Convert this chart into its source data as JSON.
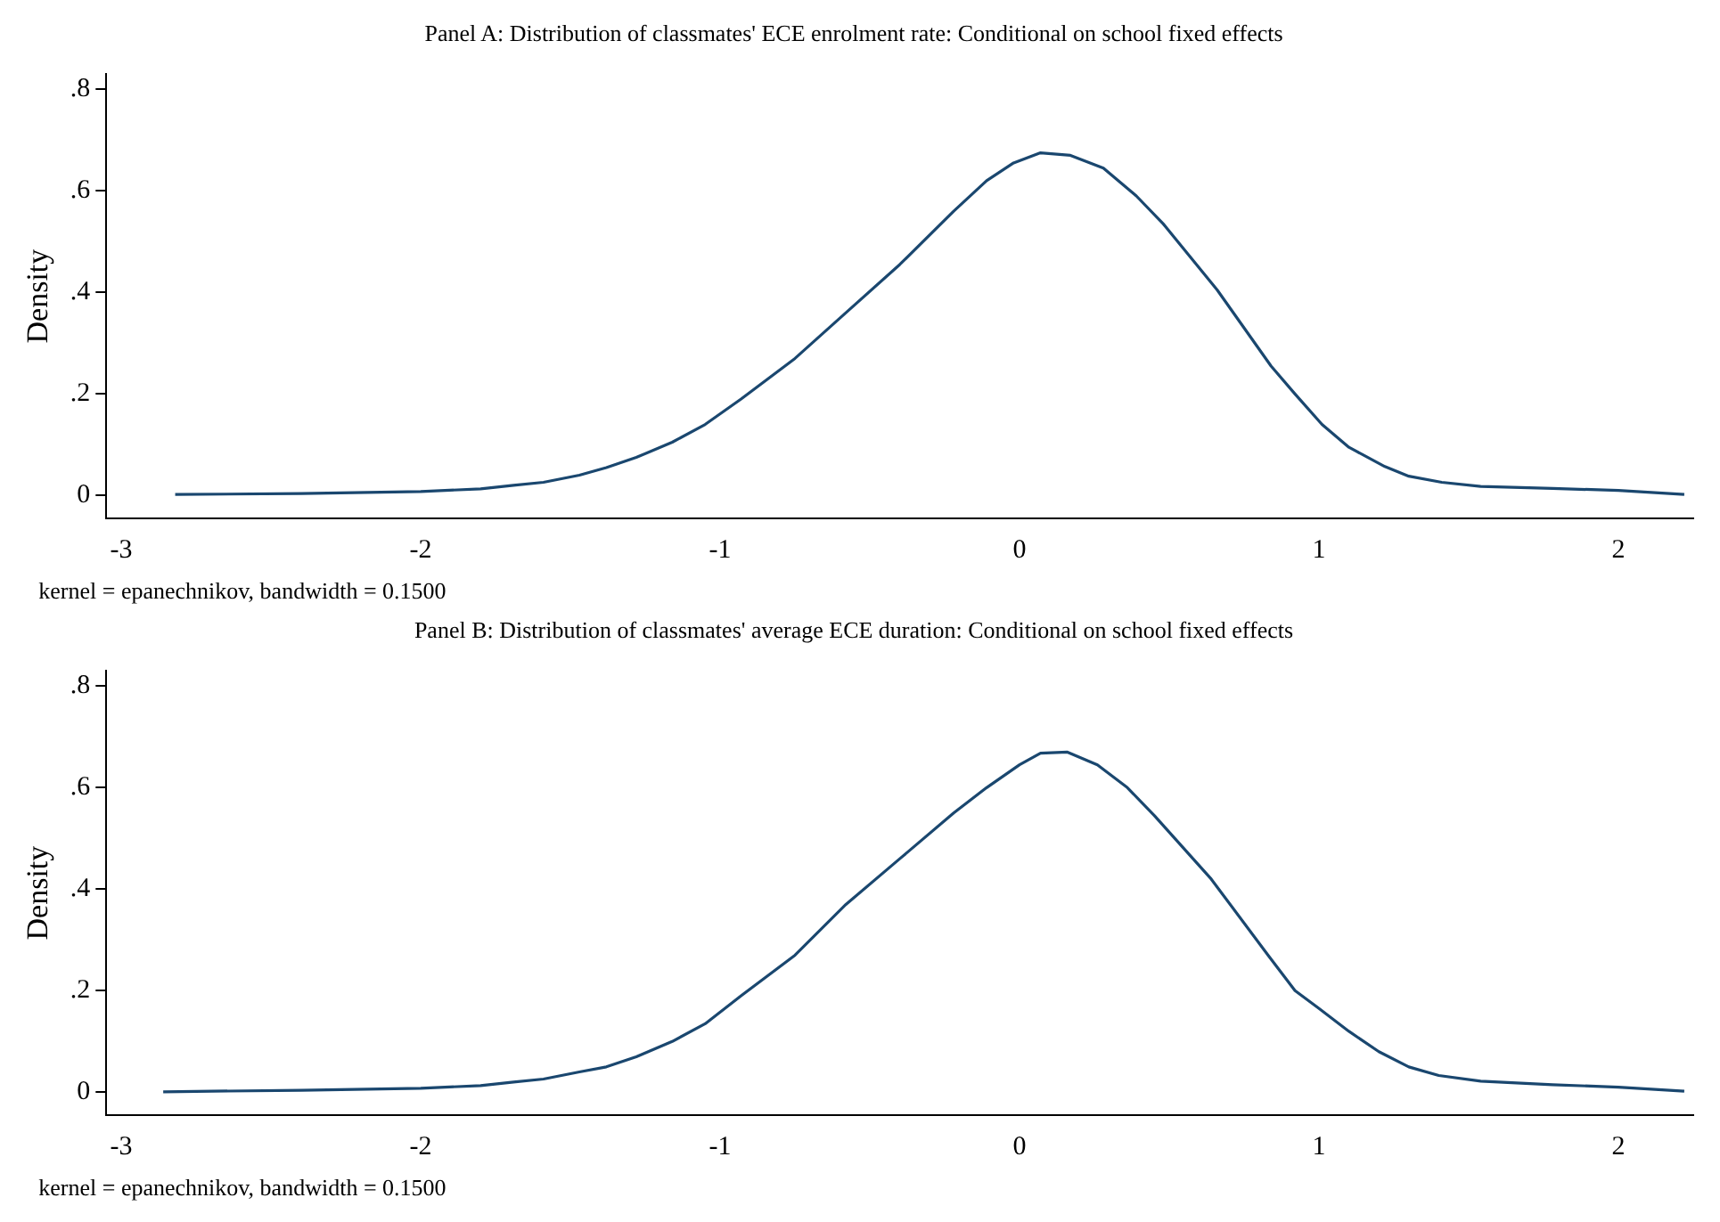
{
  "chart_data": [
    {
      "type": "line",
      "title": "Panel A: Distribution of classmates' ECE enrolment rate: Conditional on school fixed effects",
      "ylabel": "Density",
      "annotations": [
        "kernel = epanechnikov, bandwidth = 0.1500"
      ],
      "xlim": [
        -3.05,
        2.25
      ],
      "ylim": [
        -0.045,
        0.83
      ],
      "xticks": [
        -3,
        -2,
        -1,
        0,
        1,
        2
      ],
      "yticks": [
        {
          "value": 0,
          "label": "0"
        },
        {
          "value": 0.2,
          "label": ".2"
        },
        {
          "value": 0.4,
          "label": ".4"
        },
        {
          "value": 0.6,
          "label": ".6"
        },
        {
          "value": 0.8,
          "label": ".8"
        }
      ],
      "grid": false,
      "legend": false,
      "marker": "none",
      "line_style": "solid",
      "series": [
        {
          "color": "#1a476f",
          "x": [
            -2.82,
            -2.4,
            -2,
            -1.8,
            -1.69,
            -1.59,
            -1.47,
            -1.38,
            -1.28,
            -1.16,
            -1.05,
            -0.93,
            -0.75,
            -0.58,
            -0.4,
            -0.22,
            -0.11,
            -0.02,
            0.07,
            0.17,
            0.28,
            0.39,
            0.48,
            0.66,
            0.84,
            0.92,
            1.01,
            1.1,
            1.22,
            1.3,
            1.41,
            1.54,
            1.78,
            2.0,
            2.22
          ],
          "values": [
            0.002,
            0.004,
            0.008,
            0.013,
            0.02,
            0.026,
            0.04,
            0.055,
            0.075,
            0.105,
            0.14,
            0.19,
            0.27,
            0.36,
            0.455,
            0.56,
            0.62,
            0.655,
            0.675,
            0.67,
            0.645,
            0.59,
            0.535,
            0.405,
            0.255,
            0.2,
            0.14,
            0.095,
            0.057,
            0.038,
            0.026,
            0.018,
            0.014,
            0.01,
            0.002
          ]
        }
      ]
    },
    {
      "type": "line",
      "title": "Panel B: Distribution of classmates' average ECE duration: Conditional on school fixed effects",
      "ylabel": "Density",
      "annotations": [
        "kernel = epanechnikov, bandwidth = 0.1500"
      ],
      "xlim": [
        -3.05,
        2.25
      ],
      "ylim": [
        -0.045,
        0.83
      ],
      "xticks": [
        -3,
        -2,
        -1,
        0,
        1,
        2
      ],
      "yticks": [
        {
          "value": 0,
          "label": "0"
        },
        {
          "value": 0.2,
          "label": ".2"
        },
        {
          "value": 0.4,
          "label": ".4"
        },
        {
          "value": 0.6,
          "label": ".6"
        },
        {
          "value": 0.8,
          "label": ".8"
        }
      ],
      "grid": false,
      "legend": false,
      "marker": "none",
      "line_style": "solid",
      "series": [
        {
          "color": "#1a476f",
          "x": [
            -2.86,
            -2.4,
            -2,
            -1.8,
            -1.69,
            -1.59,
            -1.47,
            -1.38,
            -1.28,
            -1.16,
            -1.05,
            -0.93,
            -0.75,
            -0.58,
            -0.4,
            -0.22,
            -0.11,
            0.0,
            0.07,
            0.16,
            0.26,
            0.36,
            0.45,
            0.64,
            0.83,
            0.92,
            1.0,
            1.1,
            1.2,
            1.3,
            1.4,
            1.54,
            1.78,
            2.0,
            2.22
          ],
          "values": [
            0.001,
            0.004,
            0.008,
            0.013,
            0.02,
            0.026,
            0.04,
            0.05,
            0.07,
            0.1,
            0.135,
            0.19,
            0.27,
            0.37,
            0.46,
            0.55,
            0.6,
            0.645,
            0.668,
            0.67,
            0.645,
            0.6,
            0.545,
            0.42,
            0.27,
            0.2,
            0.165,
            0.12,
            0.08,
            0.05,
            0.033,
            0.022,
            0.015,
            0.01,
            0.002
          ]
        }
      ]
    }
  ]
}
